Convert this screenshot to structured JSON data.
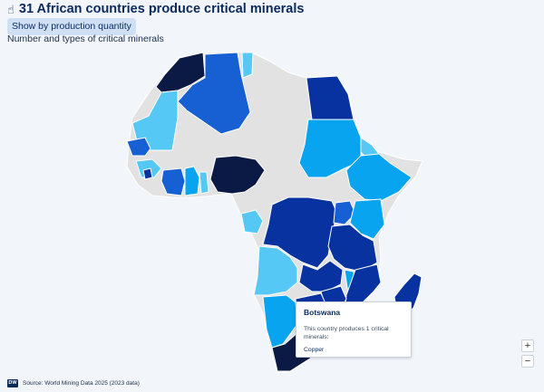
{
  "header": {
    "title": "31 African countries produce critical minerals",
    "toggle_label": "Show by production quantity",
    "subtitle": "Number and types of critical minerals"
  },
  "tooltip": {
    "country": "Botswana",
    "text": "This country produces 1 critical minerals:",
    "minerals": [
      "Copper"
    ]
  },
  "zoom": {
    "in_label": "+",
    "out_label": "−"
  },
  "footer": {
    "logo_text": "DW",
    "source": "Source: World Mining Data 2025 (2023 data)"
  },
  "map_colors": {
    "none": "#e2e2e2",
    "one": "#55c8f5",
    "two": "#08a4f0",
    "three": "#1660d4",
    "four": "#0832a0",
    "five_plus": "#0a1a44"
  },
  "icons": {
    "title_icon": "pointing-hand-icon",
    "logo": "dw-logo"
  }
}
